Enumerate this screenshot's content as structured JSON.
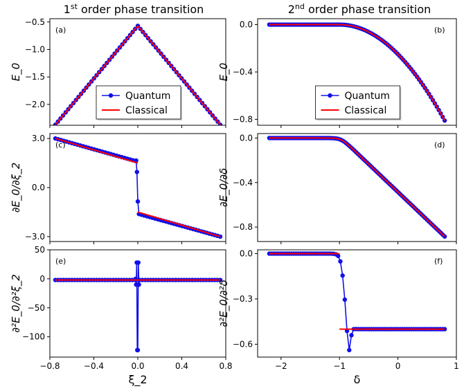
{
  "titles": {
    "left": {
      "base": "1",
      "sup": "st",
      "rest": " order phase transition"
    },
    "right": {
      "base": "2",
      "sup": "nd",
      "rest": " order phase transition"
    }
  },
  "colors": {
    "quantum": "#1010e8",
    "classical": "#ff0000"
  },
  "legend": {
    "quantum": "Quantum",
    "classical": "Classical"
  },
  "chart_data": [
    {
      "id": "a",
      "panel_label": "(a)",
      "type": "line",
      "ylabel": "E_0",
      "xlabel": "",
      "xlim": [
        -0.8,
        0.8
      ],
      "ylim": [
        -2.38,
        -0.44
      ],
      "yticks": [
        -0.5,
        -1.0,
        -1.5,
        -2.0
      ],
      "ytick_labels": [
        "−0.5",
        "−1.0",
        "−1.5",
        "−2.0"
      ],
      "xticks": [
        -0.8,
        -0.4,
        0.0,
        0.4,
        0.8
      ],
      "xtick_labels": [],
      "legend": true,
      "series": [
        {
          "name": "Quantum",
          "function": "1st_energy",
          "x_range": [
            -0.75,
            0.75
          ],
          "n": 65
        },
        {
          "name": "Classical",
          "function": "1st_energy",
          "x_range": [
            -0.75,
            0.75
          ]
        }
      ]
    },
    {
      "id": "b",
      "panel_label": "(b)",
      "type": "line",
      "ylabel": "E_0",
      "xlabel": "",
      "xlim": [
        -2.4,
        1.0
      ],
      "ylim": [
        -0.85,
        0.05
      ],
      "yticks": [
        0.0,
        -0.4,
        -0.8
      ],
      "ytick_labels": [
        "0.0",
        "−0.4",
        "−0.8"
      ],
      "xticks": [
        -2,
        -1,
        0,
        1
      ],
      "xtick_labels": [],
      "legend": true,
      "series": [
        {
          "name": "Quantum",
          "function": "2nd_energy",
          "x_range": [
            -2.2,
            0.8
          ],
          "n": 90
        },
        {
          "name": "Classical",
          "function": "2nd_energy",
          "x_range": [
            -2.2,
            0.8
          ]
        }
      ]
    },
    {
      "id": "c",
      "panel_label": "(c)",
      "type": "line",
      "ylabel": "∂E_0/∂ξ_2",
      "xlabel": "",
      "xlim": [
        -0.8,
        0.8
      ],
      "ylim": [
        -3.3,
        3.3
      ],
      "yticks": [
        3.0,
        0.0,
        -3.0
      ],
      "ytick_labels": [
        "3.0",
        "0.0",
        "−3.0"
      ],
      "xticks": [
        -0.8,
        -0.4,
        0.0,
        0.4,
        0.8
      ],
      "xtick_labels": [],
      "legend": false,
      "series": [
        {
          "name": "Quantum",
          "points": [
            [
              -0.75,
              3.0
            ],
            [
              -0.02,
              1.62
            ],
            [
              -0.015,
              1.65
            ],
            [
              -0.008,
              0.95
            ],
            [
              0.0,
              -0.85
            ],
            [
              0.01,
              -1.62
            ],
            [
              0.75,
              -3.0
            ]
          ]
        },
        {
          "name": "Classical",
          "segments": [
            [
              [
                -0.75,
                3.0
              ],
              [
                0.0,
                1.5
              ]
            ],
            [
              [
                0.0,
                -1.5
              ],
              [
                0.75,
                -3.0
              ]
            ]
          ]
        }
      ]
    },
    {
      "id": "d",
      "panel_label": "(d)",
      "type": "line",
      "ylabel": "∂E_0/∂δ",
      "xlabel": "",
      "xlim": [
        -2.4,
        1.0
      ],
      "ylim": [
        -0.93,
        0.04
      ],
      "yticks": [
        0.0,
        -0.4,
        -0.8
      ],
      "ytick_labels": [
        "0.0",
        "−0.4",
        "−0.8"
      ],
      "xticks": [
        -2,
        -1,
        0,
        1
      ],
      "xtick_labels": [],
      "legend": false,
      "series": [
        {
          "name": "Quantum",
          "function": "2nd_derivative1",
          "x_range": [
            -2.2,
            0.8
          ],
          "n": 100
        },
        {
          "name": "Classical",
          "function": "2nd_derivative1",
          "x_range": [
            -2.2,
            0.8
          ]
        }
      ]
    },
    {
      "id": "e",
      "panel_label": "(e)",
      "type": "line",
      "ylabel": "∂²E_0/∂²ξ_2",
      "xlabel": "ξ_2",
      "xlim": [
        -0.8,
        0.8
      ],
      "ylim": [
        -135,
        50
      ],
      "yticks": [
        50,
        0,
        -50,
        -100
      ],
      "ytick_labels": [
        "50",
        "0",
        "−50",
        "−100"
      ],
      "xticks": [
        -0.8,
        -0.4,
        0.0,
        0.4,
        0.8
      ],
      "xtick_labels": [
        "−0.8",
        "−0.4",
        "0.0",
        "0.4",
        "0.8"
      ],
      "legend": false,
      "series": [
        {
          "name": "Quantum",
          "points": [
            [
              -0.75,
              -2
            ],
            [
              -0.025,
              -2
            ],
            [
              -0.02,
              0
            ],
            [
              -0.015,
              -10
            ],
            [
              -0.01,
              28
            ],
            [
              -0.005,
              -123
            ],
            [
              0.0,
              -123
            ],
            [
              0.005,
              28
            ],
            [
              0.01,
              -10
            ],
            [
              0.015,
              -2
            ],
            [
              0.75,
              -2
            ]
          ]
        },
        {
          "name": "Classical",
          "segments": [
            [
              [
                -0.75,
                -2
              ],
              [
                0.75,
                -2
              ]
            ]
          ]
        }
      ]
    },
    {
      "id": "f",
      "panel_label": "(f)",
      "type": "line",
      "ylabel": "∂²E_0/∂²δ",
      "xlabel": "δ",
      "xlim": [
        -2.4,
        1.0
      ],
      "ylim": [
        -0.685,
        0.025
      ],
      "yticks": [
        0.0,
        -0.3,
        -0.6
      ],
      "ytick_labels": [
        "0.0",
        "−0.3",
        "−0.6"
      ],
      "xticks": [
        -2,
        -1,
        0,
        1
      ],
      "xtick_labels": [
        "−2",
        "−1",
        "0",
        "1"
      ],
      "legend": false,
      "series": [
        {
          "name": "Quantum",
          "function": "2nd_derivative2",
          "x_range": [
            -2.2,
            0.8
          ],
          "n": 80
        },
        {
          "name": "Classical",
          "segments": [
            [
              [
                -2.2,
                0.0
              ],
              [
                -1.0,
                0.0
              ]
            ],
            [
              [
                -1.0,
                -0.5
              ],
              [
                0.8,
                -0.5
              ]
            ]
          ]
        }
      ]
    }
  ]
}
